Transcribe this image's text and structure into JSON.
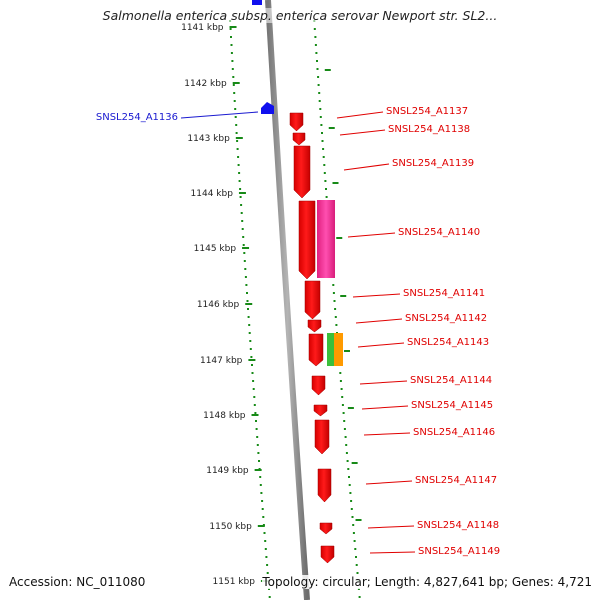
{
  "title": "Salmonella enterica subsp. enterica serovar Newport str. SL2...",
  "footer": {
    "accession": "Accession: NC_011080",
    "summary": "Topology: circular; Length: 4,827,641 bp; Genes: 4,721"
  },
  "colors": {
    "forward_gene": "#ff0000",
    "reverse_gene": "#1010ee",
    "pink_feature": "#ff3aa0",
    "green_feature": "#3bbf3b",
    "orange_feature": "#ff9a00",
    "tick": "#178a17",
    "backbone": "#888888"
  },
  "ruler": {
    "ticks": [
      "1141 kbp",
      "1142 kbp",
      "1143 kbp",
      "1144 kbp",
      "1145 kbp",
      "1146 kbp",
      "1147 kbp",
      "1148 kbp",
      "1149 kbp",
      "1150 kbp",
      "1151 kbp"
    ]
  },
  "genes": [
    {
      "id": "SNSL254_A1136",
      "strand": "reverse"
    },
    {
      "id": "SNSL254_A1137",
      "strand": "forward"
    },
    {
      "id": "SNSL254_A1138",
      "strand": "forward"
    },
    {
      "id": "SNSL254_A1139",
      "strand": "forward"
    },
    {
      "id": "SNSL254_A1140",
      "strand": "forward"
    },
    {
      "id": "SNSL254_A1141",
      "strand": "forward"
    },
    {
      "id": "SNSL254_A1142",
      "strand": "forward"
    },
    {
      "id": "SNSL254_A1143",
      "strand": "forward"
    },
    {
      "id": "SNSL254_A1144",
      "strand": "forward"
    },
    {
      "id": "SNSL254_A1145",
      "strand": "forward"
    },
    {
      "id": "SNSL254_A1146",
      "strand": "forward"
    },
    {
      "id": "SNSL254_A1147",
      "strand": "forward"
    },
    {
      "id": "SNSL254_A1148",
      "strand": "forward"
    },
    {
      "id": "SNSL254_A1149",
      "strand": "forward"
    }
  ]
}
